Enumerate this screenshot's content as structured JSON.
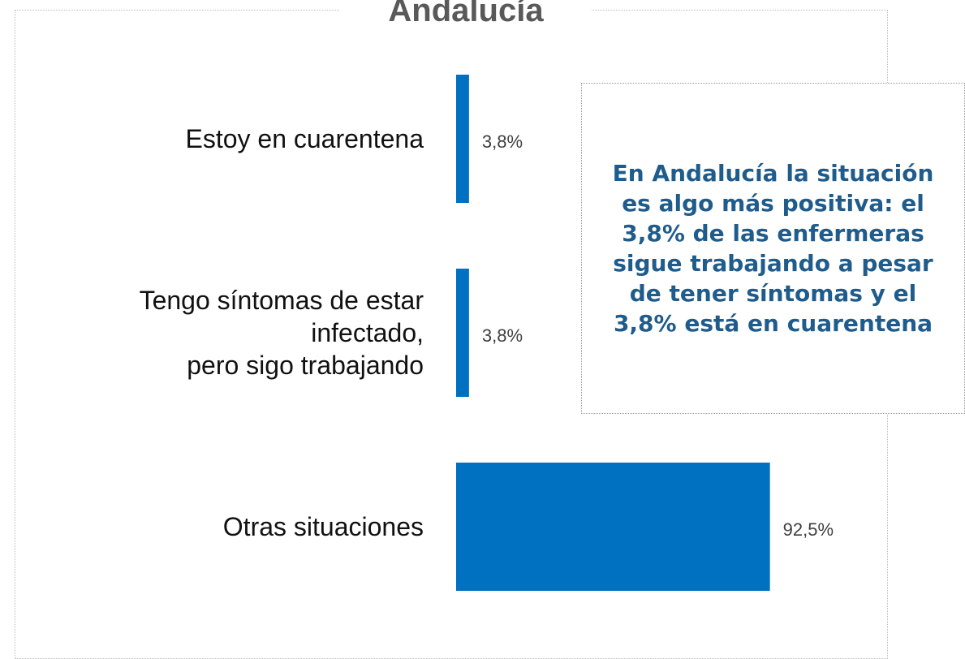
{
  "chart_data": {
    "type": "bar",
    "orientation": "horizontal",
    "title": "Andalucía",
    "categories": [
      "Estoy en cuarentena",
      "Tengo síntomas de estar\ninfectado,\npero sigo trabajando",
      "Otras situaciones"
    ],
    "values": [
      3.8,
      3.8,
      92.5
    ],
    "value_labels": [
      "3,8%",
      "3,8%",
      "92,5%"
    ],
    "color": "#0070c0",
    "annotation": "En Andalucía la situación es algo más positiva: el 3,8% de las enfermeras sigue trabajando a pesar de tener síntomas y el 3,8% está en cuarentena"
  }
}
